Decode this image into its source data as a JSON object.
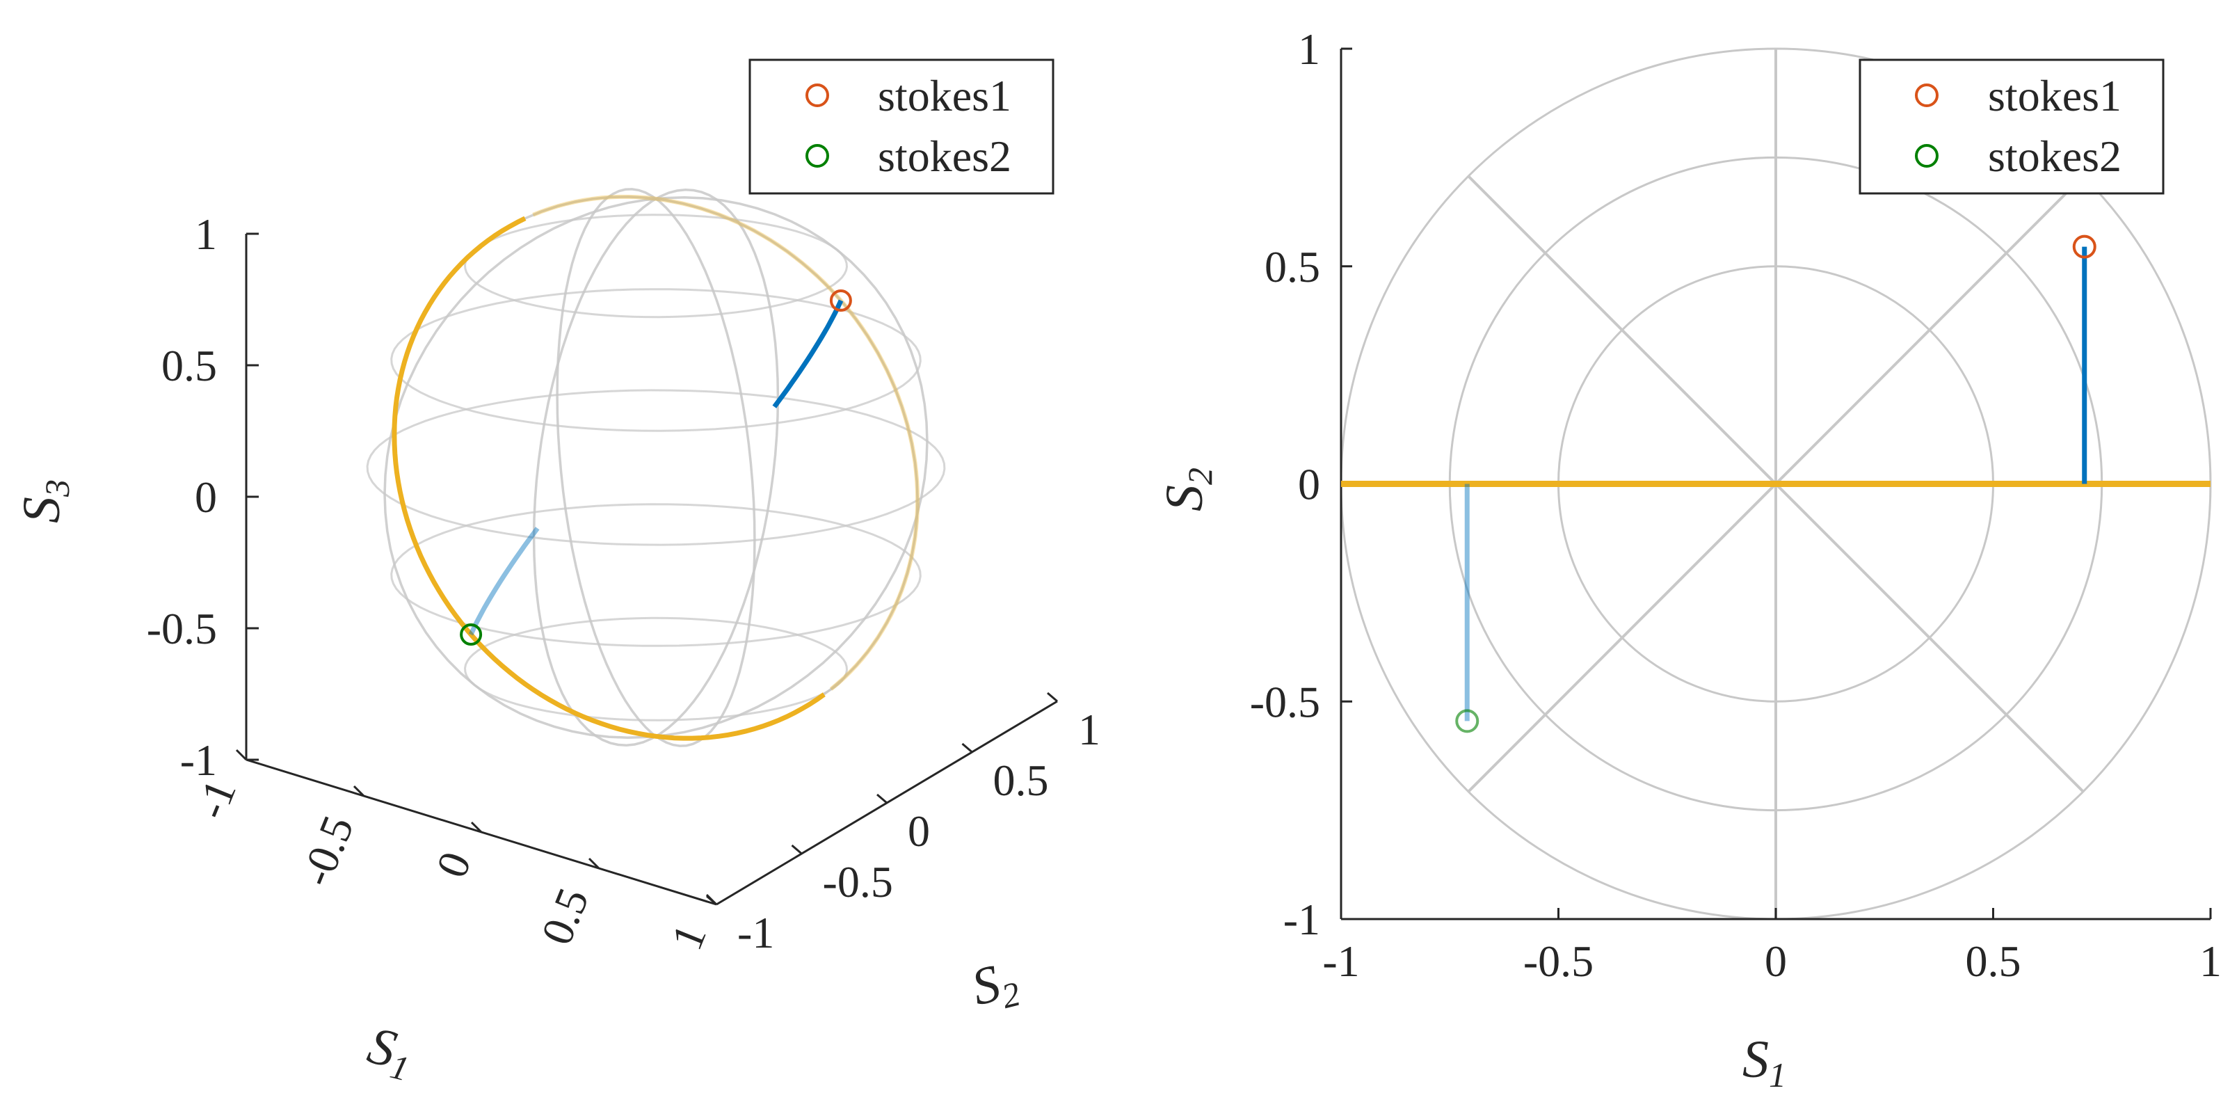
{
  "colors": {
    "stokes1": "#D95319",
    "stokes2": "#008000",
    "trajectory": "#0072BD",
    "great_circle": "#EDB120",
    "grid": "#C8C8C8",
    "axis": "#262626"
  },
  "chart_data": [
    {
      "type": "scatter",
      "subtype": "3d-poincare-sphere",
      "title": "",
      "axes": {
        "x": {
          "label": "S",
          "sub": "1",
          "lim": [
            -1,
            1
          ],
          "ticks": [
            "-1",
            "-0.5",
            "0",
            "0.5",
            "1"
          ]
        },
        "y": {
          "label": "S",
          "sub": "2",
          "lim": [
            -1,
            1
          ],
          "ticks": [
            "-1",
            "-0.5",
            "0",
            "0.5",
            "1"
          ]
        },
        "z": {
          "label": "S",
          "sub": "3",
          "lim": [
            -1,
            1
          ],
          "ticks": [
            "-1",
            "-0.5",
            "0",
            "0.5",
            "1"
          ]
        }
      },
      "legend": {
        "location": "top-right",
        "entries": [
          {
            "name": "stokes1",
            "marker": "open-circle",
            "color": "#D95319"
          },
          {
            "name": "stokes2",
            "marker": "open-circle",
            "color": "#008000"
          }
        ]
      },
      "series": [
        {
          "name": "stokes1",
          "points": [
            [
              0.707,
              0.0,
              0.707
            ]
          ]
        },
        {
          "name": "stokes2",
          "points": [
            [
              -0.707,
              0.0,
              -0.707
            ]
          ]
        }
      ],
      "trajectories": [
        {
          "from": [
            0.707,
            0.0,
            0.707
          ],
          "to": [
            0.707,
            0.544,
            0.454
          ],
          "color": "#0072BD"
        },
        {
          "from": [
            -0.707,
            0.0,
            -0.707
          ],
          "to": [
            -0.707,
            -0.544,
            -0.454
          ],
          "color": "#0072BD"
        }
      ],
      "great_circle": {
        "plane": "S2 = 0",
        "color": "#EDB120"
      },
      "grid": true
    },
    {
      "type": "scatter",
      "subtype": "projection-s1-s2",
      "title": "",
      "axes": {
        "x": {
          "label": "S",
          "sub": "1",
          "lim": [
            -1,
            1
          ],
          "ticks": [
            "-1",
            "-0.5",
            "0",
            "0.5",
            "1"
          ]
        },
        "y": {
          "label": "S",
          "sub": "2",
          "lim": [
            -1,
            1
          ],
          "ticks": [
            "-1",
            "-0.5",
            "0",
            "0.5",
            "1"
          ]
        }
      },
      "legend": {
        "location": "top-right",
        "entries": [
          {
            "name": "stokes1",
            "marker": "open-circle",
            "color": "#D95319"
          },
          {
            "name": "stokes2",
            "marker": "open-circle",
            "color": "#008000"
          }
        ]
      },
      "series": [
        {
          "name": "stokes1",
          "x": [
            0.71
          ],
          "y": [
            0.545
          ]
        },
        {
          "name": "stokes2",
          "x": [
            -0.71
          ],
          "y": [
            -0.545
          ]
        }
      ],
      "trajectories": [
        {
          "x": [
            0.71,
            0.71
          ],
          "y": [
            0.0,
            0.545
          ],
          "color": "#0072BD"
        },
        {
          "x": [
            -0.71,
            -0.71
          ],
          "y": [
            0.0,
            -0.545
          ],
          "color": "#0072BD"
        }
      ],
      "great_circle": {
        "x": [
          -1,
          1
        ],
        "y": [
          0,
          0
        ],
        "color": "#EDB120"
      },
      "polar_grid": {
        "radii": [
          0.5,
          0.75,
          1.0
        ],
        "spokes_deg": [
          0,
          45,
          90,
          135
        ]
      },
      "grid": true
    }
  ]
}
